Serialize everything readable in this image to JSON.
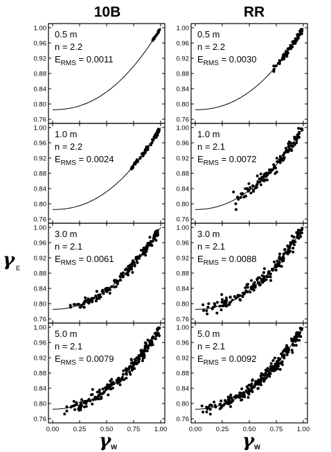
{
  "chart_data": {
    "type": "scatter",
    "columns": [
      "10B",
      "RR"
    ],
    "ylabel": {
      "symbol": "γ",
      "subscript": "E"
    },
    "xlabel": {
      "symbol": "γ",
      "subscript": "W"
    },
    "xlim": [
      0.0,
      1.0
    ],
    "ylim": [
      0.76,
      1.0
    ],
    "xticks": [
      0.0,
      0.25,
      0.5,
      0.75,
      1.0
    ],
    "xtick_labels": [
      "0.00",
      "0.25",
      "0.50",
      "0.75",
      "1.00"
    ],
    "yticks": [
      0.76,
      0.8,
      0.84,
      0.88,
      0.92,
      0.96,
      1.0
    ],
    "ytick_labels": [
      "0.76",
      "0.80",
      "0.84",
      "0.88",
      "0.92",
      "0.96",
      "1.00"
    ],
    "fit_model": "y = 0.785 + 0.215 * x^n",
    "panels": [
      {
        "column": "10B",
        "depth": "0.5 m",
        "n_label": "n = 2.2",
        "n": 2.2,
        "erms_label": "E",
        "erms_sub": "RMS",
        "erms_value": "= 0.0011",
        "x_range": [
          0.9,
          0.99
        ],
        "count": 18,
        "spread": 0.0015
      },
      {
        "column": "RR",
        "depth": "0.5 m",
        "n_label": "n = 2.2",
        "n": 2.2,
        "erms_label": "E",
        "erms_sub": "RMS",
        "erms_value": "= 0.0030",
        "x_range": [
          0.72,
          0.99
        ],
        "count": 90,
        "spread": 0.004
      },
      {
        "column": "10B",
        "depth": "1.0 m",
        "n_label": "n = 2.2",
        "n": 2.2,
        "erms_label": "E",
        "erms_sub": "RMS",
        "erms_value": "= 0.0024",
        "x_range": [
          0.72,
          0.99
        ],
        "count": 60,
        "spread": 0.003
      },
      {
        "column": "RR",
        "depth": "1.0 m",
        "n_label": "n = 2.1",
        "n": 2.1,
        "erms_label": "E",
        "erms_sub": "RMS",
        "erms_value": "= 0.0072",
        "x_range": [
          0.35,
          0.99
        ],
        "count": 120,
        "spread": 0.008
      },
      {
        "column": "10B",
        "depth": "3.0 m",
        "n_label": "n = 2.1",
        "n": 2.1,
        "erms_label": "E",
        "erms_sub": "RMS",
        "erms_value": "= 0.0061",
        "x_range": [
          0.15,
          0.99
        ],
        "count": 160,
        "spread": 0.006
      },
      {
        "column": "RR",
        "depth": "3.0 m",
        "n_label": "n = 2.1",
        "n": 2.1,
        "erms_label": "E",
        "erms_sub": "RMS",
        "erms_value": "= 0.0088",
        "x_range": [
          0.05,
          0.99
        ],
        "count": 190,
        "spread": 0.009
      },
      {
        "column": "10B",
        "depth": "5.0 m",
        "n_label": "n = 2.1",
        "n": 2.1,
        "erms_label": "E",
        "erms_sub": "RMS",
        "erms_value": "= 0.0079",
        "x_range": [
          0.1,
          0.99
        ],
        "count": 200,
        "spread": 0.008
      },
      {
        "column": "RR",
        "depth": "5.0 m",
        "n_label": "n = 2.1",
        "n": 2.1,
        "erms_label": "E",
        "erms_sub": "RMS",
        "erms_value": "= 0.0092",
        "x_range": [
          0.05,
          0.99
        ],
        "count": 240,
        "spread": 0.009
      }
    ]
  }
}
